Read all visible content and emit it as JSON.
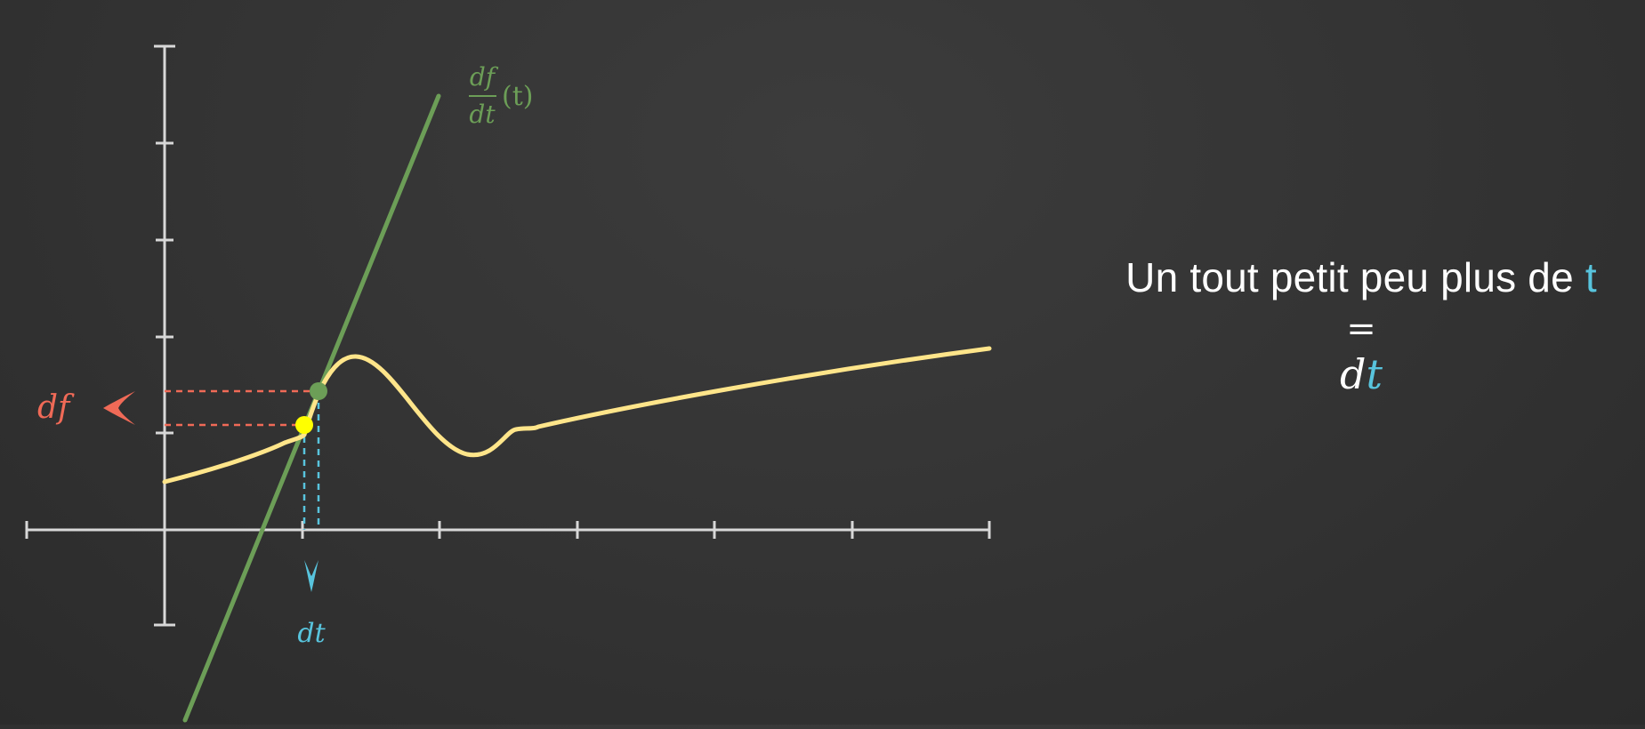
{
  "colors": {
    "background": "#333333",
    "axes": "#d8d8d8",
    "curve": "#ffe58a",
    "tangent": "#6c9e57",
    "df": "#f06a57",
    "dt": "#58c4dd",
    "text": "#ffffff",
    "point_on_curve": "#ffff00",
    "point_on_tangent": "#6c9e57"
  },
  "diagram": {
    "tangent_label": {
      "numerator": "df",
      "denominator": "dt",
      "argument": "(t)"
    },
    "df_label": "df",
    "df_arrow_icon": "chevron-left-icon",
    "dt_label": "dt",
    "dt_arrow_icon": "chevron-down-icon"
  },
  "caption": {
    "line1_prefix": "Un tout petit peu plus de ",
    "line1_variable": "t",
    "equals": "=",
    "line3_d": "d",
    "line3_t": "t"
  }
}
